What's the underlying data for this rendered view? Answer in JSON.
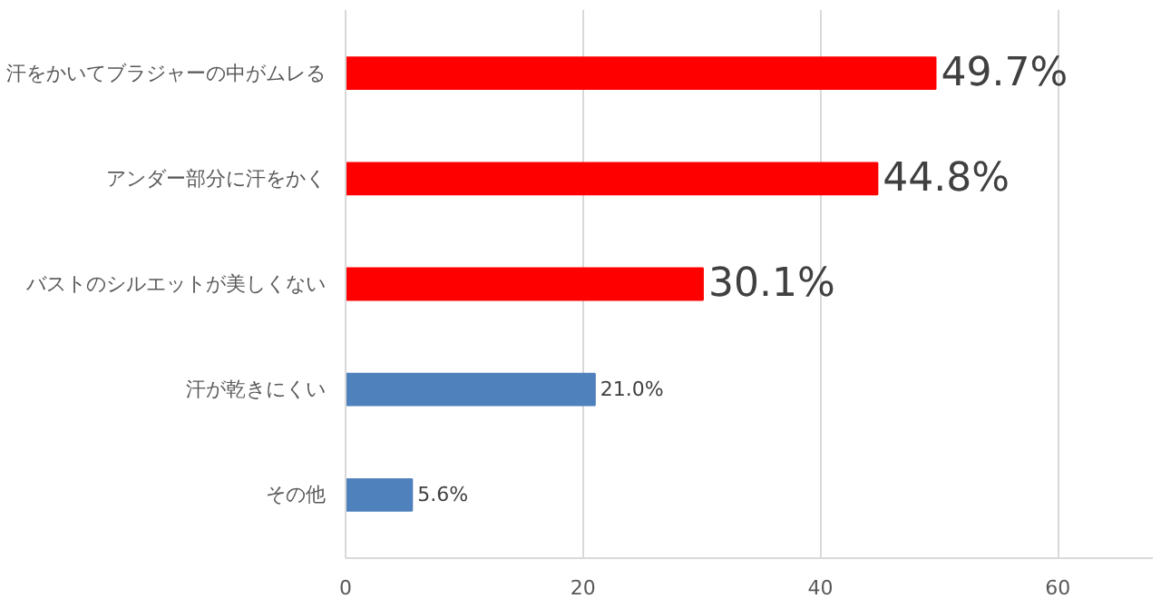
{
  "chart_data": {
    "type": "bar",
    "orientation": "horizontal",
    "categories": [
      "汗をかいてブラジャーの中がムレる",
      "アンダー部分に汗をかく",
      "バストのシルエットが美しくない",
      "汗が乾きにくい",
      "その他"
    ],
    "values": [
      49.7,
      44.8,
      30.1,
      21.0,
      5.6
    ],
    "colors": [
      "#ff0000",
      "#ff0000",
      "#ff0000",
      "#4f81bd",
      "#4f81bd"
    ],
    "value_labels": [
      "49.7%",
      "44.8%",
      "30.1%",
      "21.0%",
      "5.6%"
    ],
    "xlim": [
      0,
      68
    ],
    "xticks": [
      0,
      20,
      40,
      60
    ],
    "grid": "x"
  }
}
